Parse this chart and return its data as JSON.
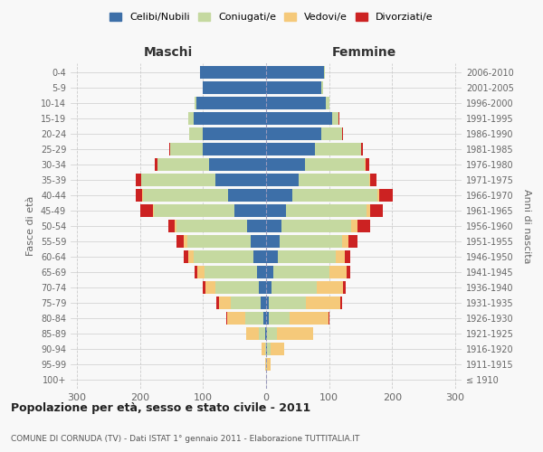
{
  "age_groups": [
    "100+",
    "95-99",
    "90-94",
    "85-89",
    "80-84",
    "75-79",
    "70-74",
    "65-69",
    "60-64",
    "55-59",
    "50-54",
    "45-49",
    "40-44",
    "35-39",
    "30-34",
    "25-29",
    "20-24",
    "15-19",
    "10-14",
    "5-9",
    "0-4"
  ],
  "birth_years": [
    "≤ 1910",
    "1911-1915",
    "1916-1920",
    "1921-1925",
    "1926-1930",
    "1931-1935",
    "1936-1940",
    "1941-1945",
    "1946-1950",
    "1951-1955",
    "1956-1960",
    "1961-1965",
    "1966-1970",
    "1971-1975",
    "1976-1980",
    "1981-1985",
    "1986-1990",
    "1991-1995",
    "1996-2000",
    "2001-2005",
    "2006-2010"
  ],
  "maschi": {
    "celibi": [
      0,
      0,
      0,
      2,
      5,
      8,
      12,
      15,
      20,
      25,
      30,
      50,
      60,
      80,
      90,
      100,
      100,
      115,
      110,
      100,
      105
    ],
    "coniugati": [
      0,
      0,
      2,
      10,
      28,
      48,
      68,
      82,
      95,
      100,
      112,
      128,
      135,
      118,
      82,
      52,
      22,
      8,
      3,
      1,
      0
    ],
    "vedovi": [
      0,
      1,
      5,
      20,
      28,
      18,
      16,
      12,
      8,
      5,
      3,
      2,
      1,
      0,
      0,
      0,
      0,
      0,
      0,
      0,
      0
    ],
    "divorziati": [
      0,
      0,
      0,
      0,
      2,
      5,
      5,
      5,
      8,
      12,
      10,
      20,
      10,
      8,
      5,
      2,
      0,
      0,
      0,
      0,
      0
    ]
  },
  "femmine": {
    "nubili": [
      0,
      0,
      2,
      2,
      5,
      5,
      8,
      12,
      18,
      22,
      25,
      32,
      42,
      52,
      62,
      78,
      88,
      105,
      95,
      88,
      92
    ],
    "coniugate": [
      0,
      2,
      5,
      15,
      32,
      58,
      72,
      88,
      92,
      98,
      110,
      128,
      135,
      112,
      95,
      72,
      32,
      10,
      5,
      2,
      1
    ],
    "vedove": [
      0,
      5,
      22,
      58,
      62,
      55,
      42,
      28,
      15,
      10,
      10,
      5,
      2,
      1,
      1,
      0,
      0,
      0,
      0,
      0,
      0
    ],
    "divorziate": [
      0,
      0,
      0,
      0,
      2,
      3,
      5,
      5,
      8,
      15,
      20,
      20,
      22,
      10,
      5,
      3,
      2,
      1,
      0,
      0,
      0
    ]
  },
  "colors": {
    "celibi": "#3d6fa8",
    "coniugati": "#c5d9a0",
    "vedovi": "#f5c97a",
    "divorziati": "#cc2222"
  },
  "title": "Popolazione per età, sesso e stato civile - 2011",
  "subtitle": "COMUNE DI CORNUDA (TV) - Dati ISTAT 1° gennaio 2011 - Elaborazione TUTTITALIA.IT",
  "ylabel_left": "Fasce di età",
  "ylabel_right": "Anni di nascita",
  "xlabel_maschi": "Maschi",
  "xlabel_femmine": "Femmine",
  "xlim": 310,
  "bg_color": "#f8f8f8",
  "grid_color": "#cccccc"
}
